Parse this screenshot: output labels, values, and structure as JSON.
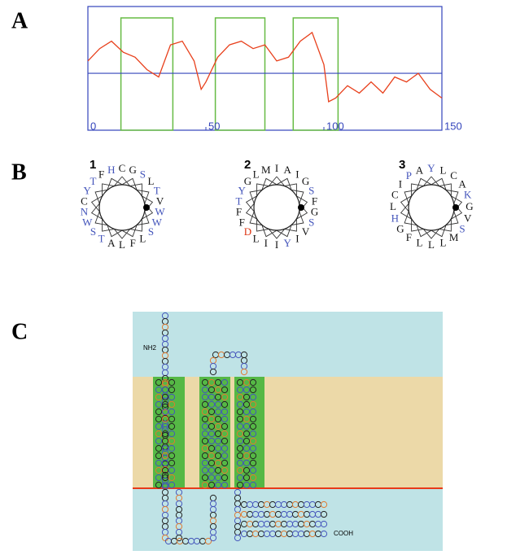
{
  "panel_labels": [
    "A",
    "B",
    "C"
  ],
  "chart_data": {
    "type": "line",
    "x": [
      0,
      5,
      10,
      15,
      20,
      25,
      30,
      35,
      40,
      45,
      48,
      50,
      55,
      60,
      65,
      70,
      75,
      80,
      85,
      90,
      95,
      100,
      102,
      105,
      110,
      115,
      120,
      125,
      130,
      135,
      140,
      145,
      150
    ],
    "values": [
      0.56,
      0.66,
      0.72,
      0.63,
      0.59,
      0.49,
      0.43,
      0.69,
      0.72,
      0.56,
      0.33,
      0.39,
      0.59,
      0.69,
      0.72,
      0.66,
      0.69,
      0.56,
      0.59,
      0.72,
      0.79,
      0.53,
      0.23,
      0.26,
      0.36,
      0.3,
      0.39,
      0.3,
      0.43,
      0.39,
      0.46,
      0.33,
      0.26
    ],
    "color": "#e8401c",
    "xlim": [
      0,
      150
    ],
    "ylim": [
      0,
      1
    ],
    "xticks": [
      0,
      50,
      100,
      150
    ],
    "threshold": 0.46,
    "threshold_color": "#3344bb",
    "segments": [
      [
        14,
        36
      ],
      [
        54,
        75
      ],
      [
        87,
        106
      ]
    ],
    "segment_color": "#66bb44"
  },
  "wheels": [
    {
      "label": "1",
      "residues": [
        "C",
        "G",
        "S",
        "L",
        "T",
        "V",
        "W",
        "W",
        "S",
        "L",
        "F",
        "L",
        "A",
        "T",
        "S",
        "W",
        "N",
        "C",
        "Y",
        "T",
        "F",
        "H"
      ]
    },
    {
      "label": "2",
      "residues": [
        "I",
        "A",
        "I",
        "G",
        "S",
        "F",
        "G",
        "S",
        "V",
        "I",
        "Y",
        "I",
        "I",
        "L",
        "D",
        "F",
        "F",
        "T",
        "Y",
        "G",
        "L",
        "M"
      ]
    },
    {
      "label": "3",
      "residues": [
        "Y",
        "L",
        "C",
        "A",
        "K",
        "G",
        "V",
        "S",
        "M",
        "L",
        "L",
        "L",
        "F",
        "G",
        "H",
        "L",
        "C",
        "I",
        "P",
        "A"
      ]
    }
  ],
  "residue_colors": {
    "S": "#4455bb",
    "T": "#4455bb",
    "Y": "#4455bb",
    "W": "#4455bb",
    "N": "#4455bb",
    "H": "#4455bb",
    "K": "#4455bb",
    "P": "#4455bb",
    "D": "#dd3311"
  },
  "topology": {
    "n_term": "NH2",
    "c_term": "COOH"
  }
}
